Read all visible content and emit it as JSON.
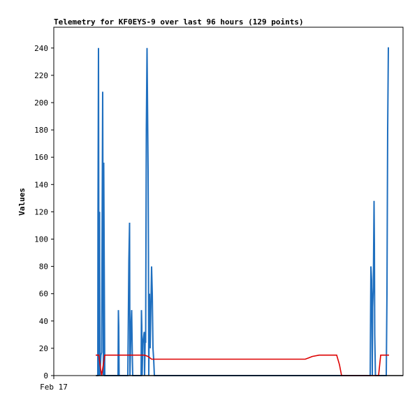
{
  "chart_data": {
    "type": "line",
    "title": "Telemetry for KF0EYS-9 over last 96 hours (129 points)",
    "ylabel": "Values",
    "xlabel": "",
    "x_tick_labels": [
      "Feb 17"
    ],
    "ylim": [
      0,
      250
    ],
    "y_ticks": [
      0,
      20,
      40,
      60,
      80,
      100,
      120,
      140,
      160,
      180,
      200,
      220,
      240
    ],
    "xlim": [
      0,
      100
    ],
    "grid": false,
    "legend": "none",
    "series": [
      {
        "color": "#1f6fbf",
        "points": [
          [
            12.2,
            0
          ],
          [
            12.6,
            0
          ],
          [
            12.65,
            120
          ],
          [
            12.8,
            240
          ],
          [
            12.95,
            0
          ],
          [
            13.1,
            120
          ],
          [
            13.2,
            0
          ],
          [
            13.5,
            15
          ],
          [
            13.7,
            17
          ],
          [
            14.0,
            208
          ],
          [
            14.2,
            0
          ],
          [
            14.3,
            156
          ],
          [
            14.5,
            52
          ],
          [
            14.6,
            0
          ],
          [
            18.4,
            0
          ],
          [
            18.5,
            48
          ],
          [
            18.6,
            36
          ],
          [
            18.7,
            0
          ],
          [
            21.2,
            0
          ],
          [
            21.3,
            28
          ],
          [
            21.5,
            84
          ],
          [
            21.7,
            112
          ],
          [
            21.8,
            0
          ],
          [
            22.1,
            36
          ],
          [
            22.3,
            48
          ],
          [
            22.5,
            12
          ],
          [
            22.6,
            0
          ],
          [
            25.0,
            0
          ],
          [
            25.1,
            48
          ],
          [
            25.2,
            36
          ],
          [
            25.3,
            0
          ],
          [
            25.5,
            24
          ],
          [
            25.7,
            28
          ],
          [
            25.9,
            32
          ],
          [
            26.0,
            0
          ],
          [
            26.2,
            32
          ],
          [
            26.3,
            24
          ],
          [
            26.5,
            180
          ],
          [
            26.7,
            240
          ],
          [
            26.8,
            210
          ],
          [
            27.0,
            150
          ],
          [
            27.1,
            90
          ],
          [
            27.2,
            0
          ],
          [
            27.4,
            60
          ],
          [
            27.6,
            20
          ],
          [
            28.0,
            80
          ],
          [
            28.2,
            60
          ],
          [
            28.4,
            20
          ],
          [
            28.6,
            12
          ],
          [
            28.8,
            0
          ],
          [
            90.6,
            0
          ],
          [
            90.8,
            80
          ],
          [
            91.0,
            70
          ],
          [
            91.1,
            40
          ],
          [
            91.2,
            0
          ],
          [
            91.3,
            50
          ],
          [
            91.5,
            65
          ],
          [
            91.7,
            128
          ],
          [
            91.8,
            96
          ],
          [
            91.9,
            30
          ],
          [
            92.1,
            0
          ],
          [
            95.2,
            0
          ],
          [
            95.4,
            60
          ],
          [
            95.6,
            180
          ],
          [
            95.8,
            240
          ],
          [
            96.0,
            240
          ]
        ]
      },
      {
        "color": "#dd0000",
        "points": [
          [
            12.0,
            15
          ],
          [
            12.9,
            15
          ],
          [
            13.4,
            5
          ],
          [
            13.7,
            0
          ],
          [
            14.6,
            15
          ],
          [
            26.0,
            15
          ],
          [
            27.0,
            14
          ],
          [
            28.0,
            12
          ],
          [
            30.0,
            12
          ],
          [
            40.0,
            12
          ],
          [
            55.0,
            12
          ],
          [
            72.0,
            12
          ],
          [
            73.0,
            13
          ],
          [
            74.0,
            14
          ],
          [
            76.0,
            15
          ],
          [
            81.0,
            15
          ],
          [
            81.8,
            8
          ],
          [
            82.4,
            0
          ],
          [
            93.0,
            0
          ],
          [
            93.4,
            10
          ],
          [
            93.6,
            15
          ],
          [
            96.0,
            15
          ]
        ]
      },
      {
        "color": "#000000",
        "points": [
          [
            12.0,
            0
          ],
          [
            100.0,
            0
          ]
        ]
      }
    ]
  }
}
